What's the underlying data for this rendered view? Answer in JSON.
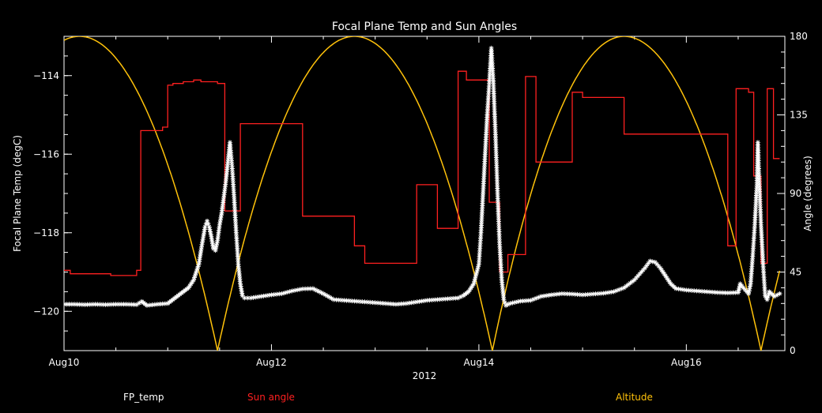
{
  "chart_data": {
    "type": "line",
    "title": "Focal Plane Temp and Sun Angles",
    "xlabel": "2012",
    "ylabel": "Focal Plane Temp (degC)",
    "ylabel_right": "Angle (degrees)",
    "xlim": [
      0,
      6.95
    ],
    "ylim": [
      -121.0,
      -113.0
    ],
    "ylim_right": [
      0,
      180
    ],
    "x_ticks": [
      {
        "value": 0,
        "label": "Aug10"
      },
      {
        "value": 2,
        "label": "Aug12"
      },
      {
        "value": 4,
        "label": "Aug14"
      },
      {
        "value": 6,
        "label": "Aug16"
      }
    ],
    "y_ticks": [
      {
        "value": -114,
        "label": "−114"
      },
      {
        "value": -116,
        "label": "−116"
      },
      {
        "value": -118,
        "label": "−118"
      },
      {
        "value": -120,
        "label": "−120"
      }
    ],
    "y_ticks_right": [
      {
        "value": 0,
        "label": "0"
      },
      {
        "value": 45,
        "label": "45"
      },
      {
        "value": 90,
        "label": "90"
      },
      {
        "value": 135,
        "label": "135"
      },
      {
        "value": 180,
        "label": "180"
      }
    ],
    "grid": false,
    "legend_position": "bottom",
    "series": [
      {
        "name": "FP_temp",
        "axis": "left",
        "color": "#ffffff",
        "marker": "asterisk",
        "points": [
          [
            0.0,
            -119.82
          ],
          [
            0.1,
            -119.82
          ],
          [
            0.2,
            -119.83
          ],
          [
            0.3,
            -119.82
          ],
          [
            0.4,
            -119.83
          ],
          [
            0.5,
            -119.82
          ],
          [
            0.6,
            -119.82
          ],
          [
            0.7,
            -119.83
          ],
          [
            0.75,
            -119.75
          ],
          [
            0.8,
            -119.85
          ],
          [
            0.9,
            -119.82
          ],
          [
            1.0,
            -119.8
          ],
          [
            1.05,
            -119.7
          ],
          [
            1.1,
            -119.6
          ],
          [
            1.15,
            -119.5
          ],
          [
            1.2,
            -119.4
          ],
          [
            1.25,
            -119.2
          ],
          [
            1.3,
            -118.8
          ],
          [
            1.33,
            -118.3
          ],
          [
            1.36,
            -117.85
          ],
          [
            1.38,
            -117.7
          ],
          [
            1.4,
            -117.85
          ],
          [
            1.42,
            -118.1
          ],
          [
            1.44,
            -118.4
          ],
          [
            1.46,
            -118.45
          ],
          [
            1.48,
            -118.2
          ],
          [
            1.5,
            -117.8
          ],
          [
            1.52,
            -117.5
          ],
          [
            1.54,
            -117.1
          ],
          [
            1.56,
            -116.7
          ],
          [
            1.58,
            -116.2
          ],
          [
            1.6,
            -115.7
          ],
          [
            1.62,
            -116.3
          ],
          [
            1.64,
            -117.1
          ],
          [
            1.66,
            -118.0
          ],
          [
            1.68,
            -118.8
          ],
          [
            1.7,
            -119.3
          ],
          [
            1.72,
            -119.6
          ],
          [
            1.74,
            -119.66
          ],
          [
            1.8,
            -119.66
          ],
          [
            1.9,
            -119.62
          ],
          [
            2.0,
            -119.58
          ],
          [
            2.1,
            -119.55
          ],
          [
            2.2,
            -119.48
          ],
          [
            2.3,
            -119.43
          ],
          [
            2.4,
            -119.42
          ],
          [
            2.5,
            -119.55
          ],
          [
            2.6,
            -119.7
          ],
          [
            2.7,
            -119.72
          ],
          [
            2.8,
            -119.74
          ],
          [
            2.9,
            -119.76
          ],
          [
            3.0,
            -119.78
          ],
          [
            3.1,
            -119.8
          ],
          [
            3.2,
            -119.82
          ],
          [
            3.3,
            -119.8
          ],
          [
            3.4,
            -119.76
          ],
          [
            3.5,
            -119.72
          ],
          [
            3.6,
            -119.7
          ],
          [
            3.7,
            -119.68
          ],
          [
            3.8,
            -119.66
          ],
          [
            3.85,
            -119.6
          ],
          [
            3.9,
            -119.5
          ],
          [
            3.95,
            -119.3
          ],
          [
            4.0,
            -118.8
          ],
          [
            4.02,
            -118.0
          ],
          [
            4.04,
            -117.0
          ],
          [
            4.06,
            -116.0
          ],
          [
            4.08,
            -115.0
          ],
          [
            4.1,
            -114.2
          ],
          [
            4.12,
            -113.3
          ],
          [
            4.14,
            -114.2
          ],
          [
            4.16,
            -115.5
          ],
          [
            4.18,
            -117.0
          ],
          [
            4.2,
            -118.3
          ],
          [
            4.22,
            -119.2
          ],
          [
            4.24,
            -119.7
          ],
          [
            4.26,
            -119.85
          ],
          [
            4.3,
            -119.8
          ],
          [
            4.4,
            -119.74
          ],
          [
            4.5,
            -119.72
          ],
          [
            4.6,
            -119.62
          ],
          [
            4.7,
            -119.58
          ],
          [
            4.8,
            -119.55
          ],
          [
            4.9,
            -119.56
          ],
          [
            5.0,
            -119.58
          ],
          [
            5.1,
            -119.56
          ],
          [
            5.2,
            -119.54
          ],
          [
            5.3,
            -119.5
          ],
          [
            5.4,
            -119.4
          ],
          [
            5.5,
            -119.2
          ],
          [
            5.6,
            -118.9
          ],
          [
            5.65,
            -118.72
          ],
          [
            5.7,
            -118.75
          ],
          [
            5.75,
            -118.9
          ],
          [
            5.8,
            -119.1
          ],
          [
            5.85,
            -119.3
          ],
          [
            5.9,
            -119.42
          ],
          [
            6.0,
            -119.46
          ],
          [
            6.1,
            -119.48
          ],
          [
            6.2,
            -119.5
          ],
          [
            6.3,
            -119.52
          ],
          [
            6.4,
            -119.53
          ],
          [
            6.5,
            -119.52
          ],
          [
            6.52,
            -119.3
          ],
          [
            6.55,
            -119.4
          ],
          [
            6.6,
            -119.55
          ],
          [
            6.62,
            -119.3
          ],
          [
            6.64,
            -118.6
          ],
          [
            6.66,
            -117.8
          ],
          [
            6.68,
            -116.8
          ],
          [
            6.69,
            -115.7
          ],
          [
            6.7,
            -116.5
          ],
          [
            6.72,
            -117.8
          ],
          [
            6.74,
            -118.8
          ],
          [
            6.76,
            -119.6
          ],
          [
            6.78,
            -119.7
          ],
          [
            6.8,
            -119.5
          ],
          [
            6.85,
            -119.62
          ],
          [
            6.9,
            -119.55
          ]
        ]
      },
      {
        "name": "Sun angle",
        "axis": "right",
        "color": "#ff2020",
        "marker": "step",
        "points": [
          [
            0.0,
            46
          ],
          [
            0.06,
            46
          ],
          [
            0.06,
            44
          ],
          [
            0.45,
            44
          ],
          [
            0.45,
            43
          ],
          [
            0.7,
            43
          ],
          [
            0.7,
            46
          ],
          [
            0.74,
            46
          ],
          [
            0.74,
            126
          ],
          [
            0.95,
            126
          ],
          [
            0.95,
            128
          ],
          [
            1.0,
            128
          ],
          [
            1.0,
            152
          ],
          [
            1.05,
            152
          ],
          [
            1.05,
            153
          ],
          [
            1.15,
            153
          ],
          [
            1.15,
            154
          ],
          [
            1.25,
            154
          ],
          [
            1.25,
            155
          ],
          [
            1.32,
            155
          ],
          [
            1.32,
            154
          ],
          [
            1.48,
            154
          ],
          [
            1.48,
            153
          ],
          [
            1.55,
            153
          ],
          [
            1.55,
            80
          ],
          [
            1.7,
            80
          ],
          [
            1.7,
            130
          ],
          [
            2.3,
            130
          ],
          [
            2.3,
            77
          ],
          [
            2.8,
            77
          ],
          [
            2.8,
            60
          ],
          [
            2.9,
            60
          ],
          [
            2.9,
            50
          ],
          [
            3.4,
            50
          ],
          [
            3.4,
            95
          ],
          [
            3.6,
            95
          ],
          [
            3.6,
            70
          ],
          [
            3.8,
            70
          ],
          [
            3.8,
            160
          ],
          [
            3.88,
            160
          ],
          [
            3.88,
            155
          ],
          [
            4.1,
            155
          ],
          [
            4.1,
            85
          ],
          [
            4.2,
            85
          ],
          [
            4.2,
            45
          ],
          [
            4.28,
            45
          ],
          [
            4.28,
            55
          ],
          [
            4.45,
            55
          ],
          [
            4.45,
            157
          ],
          [
            4.55,
            157
          ],
          [
            4.55,
            108
          ],
          [
            4.9,
            108
          ],
          [
            4.9,
            148
          ],
          [
            5.0,
            148
          ],
          [
            5.0,
            145
          ],
          [
            5.4,
            145
          ],
          [
            5.4,
            124
          ],
          [
            6.4,
            124
          ],
          [
            6.4,
            60
          ],
          [
            6.48,
            60
          ],
          [
            6.48,
            150
          ],
          [
            6.6,
            150
          ],
          [
            6.6,
            148
          ],
          [
            6.65,
            148
          ],
          [
            6.65,
            100
          ],
          [
            6.72,
            100
          ],
          [
            6.72,
            50
          ],
          [
            6.78,
            50
          ],
          [
            6.78,
            150
          ],
          [
            6.84,
            150
          ],
          [
            6.84,
            110
          ],
          [
            6.9,
            110
          ]
        ]
      },
      {
        "name": "Altitude",
        "axis": "right",
        "color": "#ffc20a",
        "marker": "line",
        "peaks": [
          0.15,
          2.8,
          5.4
        ],
        "troughs": [
          1.48,
          4.13,
          6.72
        ],
        "x_end": 6.9,
        "y_end": 78
      }
    ]
  }
}
